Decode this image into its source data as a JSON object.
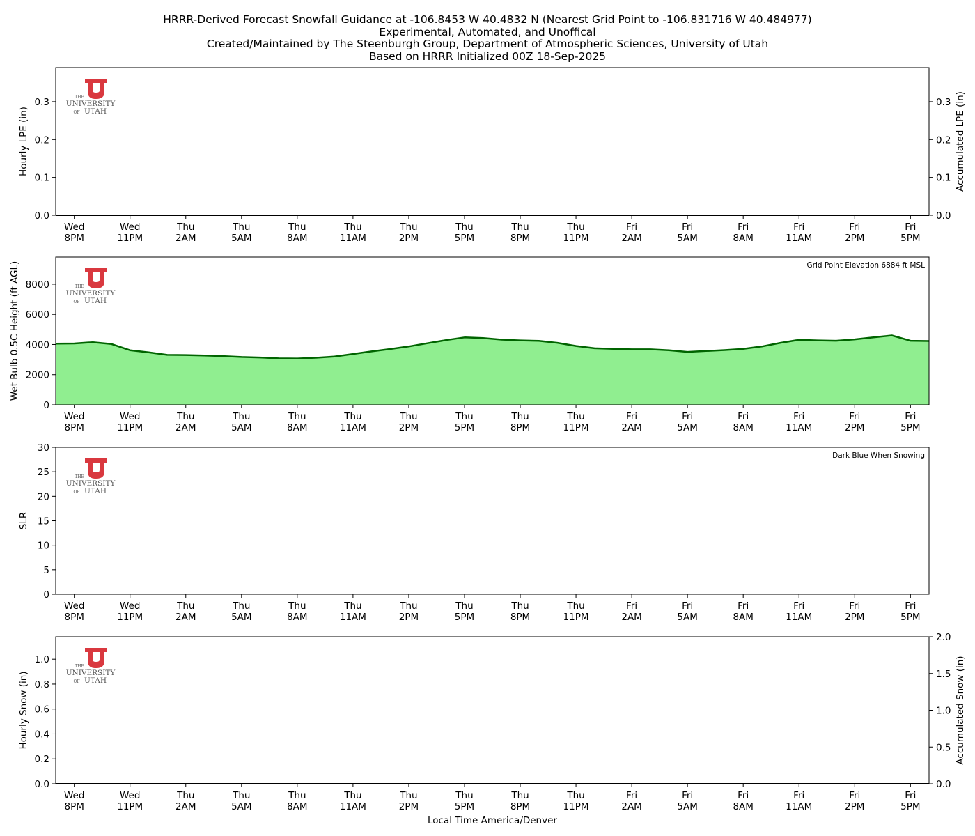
{
  "title_lines": [
    "HRRR-Derived Forecast Snowfall Guidance at -106.8453 W 40.4832 N (Nearest Grid Point to -106.831716 W 40.484977)",
    "Experimental, Automated, and Unoffical",
    "Created/Maintained by The Steenburgh Group, Department of Atmospheric Sciences, University of Utah",
    "Based on HRRR Initialized 00Z 18-Sep-2025"
  ],
  "logo": {
    "name": "university-of-utah-logo",
    "text_the": "THE",
    "text_university": "UNIVERSITY",
    "text_of": "OF",
    "text_utah": "UTAH",
    "color": "#d9383f"
  },
  "x_axis": {
    "label": "Local Time America/Denver",
    "range_hours": [
      -1,
      46
    ],
    "ticks": [
      {
        "h": 0,
        "day": "Wed",
        "time": "8PM"
      },
      {
        "h": 3,
        "day": "Wed",
        "time": "11PM"
      },
      {
        "h": 6,
        "day": "Thu",
        "time": "2AM"
      },
      {
        "h": 9,
        "day": "Thu",
        "time": "5AM"
      },
      {
        "h": 12,
        "day": "Thu",
        "time": "8AM"
      },
      {
        "h": 15,
        "day": "Thu",
        "time": "11AM"
      },
      {
        "h": 18,
        "day": "Thu",
        "time": "2PM"
      },
      {
        "h": 21,
        "day": "Thu",
        "time": "5PM"
      },
      {
        "h": 24,
        "day": "Thu",
        "time": "8PM"
      },
      {
        "h": 27,
        "day": "Thu",
        "time": "11PM"
      },
      {
        "h": 30,
        "day": "Fri",
        "time": "2AM"
      },
      {
        "h": 33,
        "day": "Fri",
        "time": "5AM"
      },
      {
        "h": 36,
        "day": "Fri",
        "time": "8AM"
      },
      {
        "h": 39,
        "day": "Fri",
        "time": "11AM"
      },
      {
        "h": 42,
        "day": "Fri",
        "time": "2PM"
      },
      {
        "h": 45,
        "day": "Fri",
        "time": "5PM"
      }
    ]
  },
  "chart_data": [
    {
      "type": "bar",
      "ylabel": "Hourly LPE (in)",
      "ylim": [
        0,
        0.39
      ],
      "yticks": [
        "0.0",
        "0.1",
        "0.2",
        "0.3"
      ],
      "y2label": "Accumulated LPE (in)",
      "y2lim": [
        0,
        0.39
      ],
      "y2ticks": [
        "0.0",
        "0.1",
        "0.2",
        "0.3"
      ],
      "series": [
        {
          "name": "Hourly LPE",
          "color": "#1f3fbf",
          "values": [
            0,
            0,
            0,
            0,
            0,
            0,
            0,
            0,
            0,
            0,
            0,
            0,
            0,
            0,
            0,
            0,
            0,
            0,
            0,
            0,
            0,
            0,
            0,
            0,
            0,
            0,
            0,
            0,
            0,
            0,
            0,
            0,
            0,
            0,
            0,
            0,
            0,
            0,
            0,
            0,
            0,
            0,
            0,
            0,
            0,
            0,
            0,
            0
          ]
        },
        {
          "name": "Accumulated LPE",
          "color": "#000000",
          "values": [
            0,
            0,
            0,
            0,
            0,
            0,
            0,
            0,
            0,
            0,
            0,
            0,
            0,
            0,
            0,
            0,
            0,
            0,
            0,
            0,
            0,
            0,
            0,
            0,
            0,
            0,
            0,
            0,
            0,
            0,
            0,
            0,
            0,
            0,
            0,
            0,
            0,
            0,
            0,
            0,
            0,
            0,
            0,
            0,
            0,
            0,
            0,
            0
          ]
        }
      ]
    },
    {
      "type": "area",
      "ylabel": "Wet Bulb 0.5C Height (ft AGL)",
      "ylim": [
        0,
        9800
      ],
      "yticks": [
        "0",
        "2000",
        "4000",
        "6000",
        "8000"
      ],
      "annotation": "Grid Point Elevation 6884 ft MSL",
      "fill_color": "#90ee90",
      "line_color": "#006400",
      "x_hours": [
        -1,
        0,
        1,
        2,
        3,
        4,
        5,
        6,
        7,
        8,
        9,
        10,
        11,
        12,
        13,
        14,
        15,
        16,
        17,
        18,
        19,
        20,
        21,
        22,
        23,
        24,
        25,
        26,
        27,
        28,
        29,
        30,
        31,
        32,
        33,
        34,
        35,
        36,
        37,
        38,
        39,
        40,
        41,
        42,
        43,
        44,
        45,
        46
      ],
      "values": [
        4060,
        4070,
        4150,
        4030,
        3620,
        3480,
        3310,
        3300,
        3270,
        3230,
        3170,
        3140,
        3080,
        3070,
        3120,
        3200,
        3370,
        3540,
        3700,
        3870,
        4080,
        4290,
        4470,
        4430,
        4320,
        4270,
        4240,
        4110,
        3900,
        3750,
        3710,
        3680,
        3680,
        3620,
        3510,
        3570,
        3630,
        3710,
        3870,
        4110,
        4310,
        4270,
        4250,
        4340,
        4470,
        4600,
        4250,
        4230
      ]
    },
    {
      "type": "bar",
      "ylabel": "SLR",
      "ylim": [
        0,
        30
      ],
      "yticks": [
        "0",
        "5",
        "10",
        "15",
        "20",
        "25",
        "30"
      ],
      "annotation": "Dark Blue When Snowing",
      "series": [
        {
          "name": "SLR",
          "color": "#00008b",
          "values": [
            0,
            0,
            0,
            0,
            0,
            0,
            0,
            0,
            0,
            0,
            0,
            0,
            0,
            0,
            0,
            0,
            0,
            0,
            0,
            0,
            0,
            0,
            0,
            0,
            0,
            0,
            0,
            0,
            0,
            0,
            0,
            0,
            0,
            0,
            0,
            0,
            0,
            0,
            0,
            0,
            0,
            0,
            0,
            0,
            0,
            0,
            0,
            0
          ]
        }
      ]
    },
    {
      "type": "bar",
      "ylabel": "Hourly Snow (in)",
      "ylim": [
        0,
        1.18
      ],
      "yticks": [
        "0.0",
        "0.2",
        "0.4",
        "0.6",
        "0.8",
        "1.0"
      ],
      "y2label": "Accumulated Snow (in)",
      "y2lim": [
        0,
        2.0
      ],
      "y2ticks": [
        "0.0",
        "0.5",
        "1.0",
        "1.5",
        "2.0"
      ],
      "xlabel": "Local Time America/Denver",
      "series": [
        {
          "name": "Hourly Snow",
          "color": "#1f3fbf",
          "values": [
            0,
            0,
            0,
            0,
            0,
            0,
            0,
            0,
            0,
            0,
            0,
            0,
            0,
            0,
            0,
            0,
            0,
            0,
            0,
            0,
            0,
            0,
            0,
            0,
            0,
            0,
            0,
            0,
            0,
            0,
            0,
            0,
            0,
            0,
            0,
            0,
            0,
            0,
            0,
            0,
            0,
            0,
            0,
            0,
            0,
            0,
            0,
            0
          ]
        },
        {
          "name": "Accumulated Snow",
          "color": "#000000",
          "values": [
            0,
            0,
            0,
            0,
            0,
            0,
            0,
            0,
            0,
            0,
            0,
            0,
            0,
            0,
            0,
            0,
            0,
            0,
            0,
            0,
            0,
            0,
            0,
            0,
            0,
            0,
            0,
            0,
            0,
            0,
            0,
            0,
            0,
            0,
            0,
            0,
            0,
            0,
            0,
            0,
            0,
            0,
            0,
            0,
            0,
            0,
            0,
            0
          ]
        }
      ]
    }
  ]
}
